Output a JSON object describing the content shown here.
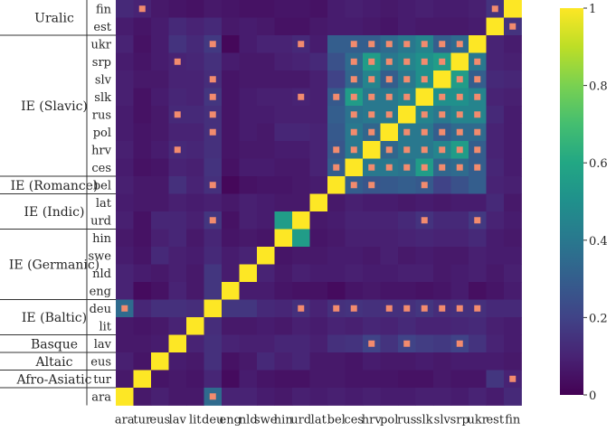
{
  "chart_data": {
    "type": "heatmap",
    "x_labels": [
      "ara",
      "tur",
      "eus",
      "lav",
      "lit",
      "deu",
      "eng",
      "nld",
      "swe",
      "hin",
      "urd",
      "lat",
      "bel",
      "ces",
      "hrv",
      "pol",
      "rus",
      "slk",
      "slv",
      "srp",
      "ukr",
      "est",
      "fin"
    ],
    "y_labels": [
      "fin",
      "est",
      "ukr",
      "srp",
      "slv",
      "slk",
      "rus",
      "pol",
      "hrv",
      "ces",
      "bel",
      "lat",
      "urd",
      "hin",
      "swe",
      "nld",
      "eng",
      "deu",
      "lit",
      "lav",
      "eus",
      "tur",
      "ara"
    ],
    "groups": [
      {
        "name": "Uralic",
        "rows": 2
      },
      {
        "name": "IE (Slavic)",
        "rows": 8
      },
      {
        "name": "IE (Romance)",
        "rows": 1
      },
      {
        "name": "IE (Indic)",
        "rows": 2
      },
      {
        "name": "IE (Germanic)",
        "rows": 4
      },
      {
        "name": "IE (Baltic)",
        "rows": 2
      },
      {
        "name": "Basque",
        "rows": 1
      },
      {
        "name": "Altaic",
        "rows": 1
      },
      {
        "name": "Afro-Asiatic",
        "rows": 1
      }
    ],
    "values": [
      [
        0.12,
        0.1,
        0.07,
        0.06,
        0.05,
        0.07,
        0.06,
        0.05,
        0.05,
        0.06,
        0.06,
        0.05,
        0.08,
        0.09,
        0.08,
        0.07,
        0.08,
        0.09,
        0.08,
        0.08,
        0.09,
        0.15,
        1.0
      ],
      [
        0.08,
        0.06,
        0.08,
        0.12,
        0.1,
        0.12,
        0.07,
        0.08,
        0.07,
        0.05,
        0.05,
        0.07,
        0.08,
        0.08,
        0.07,
        0.06,
        0.08,
        0.07,
        0.07,
        0.07,
        0.08,
        1.0,
        0.15
      ],
      [
        0.1,
        0.05,
        0.08,
        0.15,
        0.12,
        0.17,
        0.02,
        0.08,
        0.1,
        0.1,
        0.12,
        0.08,
        0.3,
        0.3,
        0.3,
        0.35,
        0.4,
        0.45,
        0.3,
        0.35,
        1.0,
        0.1,
        0.08
      ],
      [
        0.08,
        0.06,
        0.08,
        0.1,
        0.11,
        0.14,
        0.08,
        0.07,
        0.07,
        0.09,
        0.1,
        0.12,
        0.25,
        0.35,
        0.55,
        0.4,
        0.45,
        0.5,
        0.55,
        1.0,
        0.4,
        0.1,
        0.09
      ],
      [
        0.09,
        0.07,
        0.07,
        0.1,
        0.1,
        0.13,
        0.06,
        0.07,
        0.07,
        0.07,
        0.07,
        0.09,
        0.2,
        0.33,
        0.45,
        0.3,
        0.4,
        0.5,
        1.0,
        0.55,
        0.3,
        0.12,
        0.11
      ],
      [
        0.09,
        0.05,
        0.08,
        0.11,
        0.1,
        0.16,
        0.06,
        0.08,
        0.09,
        0.09,
        0.1,
        0.09,
        0.28,
        0.55,
        0.4,
        0.4,
        0.45,
        1.0,
        0.5,
        0.5,
        0.45,
        0.1,
        0.09
      ],
      [
        0.08,
        0.05,
        0.07,
        0.12,
        0.12,
        0.14,
        0.06,
        0.08,
        0.08,
        0.09,
        0.09,
        0.09,
        0.3,
        0.38,
        0.4,
        0.4,
        1.0,
        0.45,
        0.4,
        0.45,
        0.45,
        0.12,
        0.08
      ],
      [
        0.08,
        0.06,
        0.07,
        0.1,
        0.1,
        0.14,
        0.06,
        0.08,
        0.07,
        0.11,
        0.11,
        0.1,
        0.28,
        0.4,
        0.33,
        1.0,
        0.4,
        0.4,
        0.3,
        0.35,
        0.35,
        0.1,
        0.08
      ],
      [
        0.09,
        0.06,
        0.08,
        0.12,
        0.11,
        0.14,
        0.06,
        0.07,
        0.07,
        0.08,
        0.08,
        0.1,
        0.27,
        0.4,
        1.0,
        0.33,
        0.4,
        0.4,
        0.45,
        0.55,
        0.3,
        0.1,
        0.08
      ],
      [
        0.08,
        0.05,
        0.06,
        0.1,
        0.09,
        0.15,
        0.05,
        0.08,
        0.08,
        0.07,
        0.07,
        0.1,
        0.3,
        1.0,
        0.4,
        0.4,
        0.38,
        0.55,
        0.33,
        0.35,
        0.3,
        0.11,
        0.08
      ],
      [
        0.09,
        0.07,
        0.07,
        0.14,
        0.1,
        0.14,
        0.02,
        0.05,
        0.06,
        0.06,
        0.07,
        0.08,
        1.0,
        0.3,
        0.27,
        0.28,
        0.3,
        0.28,
        0.2,
        0.25,
        0.3,
        0.1,
        0.09
      ],
      [
        0.08,
        0.07,
        0.07,
        0.09,
        0.08,
        0.09,
        0.07,
        0.09,
        0.08,
        0.07,
        0.07,
        1.0,
        0.07,
        0.09,
        0.08,
        0.08,
        0.07,
        0.08,
        0.07,
        0.08,
        0.08,
        0.12,
        0.07
      ],
      [
        0.09,
        0.05,
        0.11,
        0.11,
        0.09,
        0.16,
        0.05,
        0.09,
        0.08,
        0.55,
        1.0,
        0.07,
        0.08,
        0.1,
        0.1,
        0.1,
        0.12,
        0.15,
        0.12,
        0.12,
        0.17,
        0.1,
        0.08
      ],
      [
        0.07,
        0.05,
        0.09,
        0.11,
        0.07,
        0.11,
        0.06,
        0.07,
        0.06,
        1.0,
        0.55,
        0.06,
        0.07,
        0.09,
        0.09,
        0.09,
        0.1,
        0.11,
        0.1,
        0.1,
        0.12,
        0.08,
        0.07
      ],
      [
        0.08,
        0.06,
        0.12,
        0.09,
        0.08,
        0.12,
        0.08,
        0.1,
        1.0,
        0.06,
        0.07,
        0.07,
        0.08,
        0.08,
        0.07,
        0.09,
        0.07,
        0.08,
        0.07,
        0.07,
        0.09,
        0.08,
        0.08
      ],
      [
        0.1,
        0.08,
        0.07,
        0.09,
        0.07,
        0.16,
        0.08,
        1.0,
        0.1,
        0.07,
        0.09,
        0.08,
        0.08,
        0.09,
        0.08,
        0.08,
        0.09,
        0.09,
        0.07,
        0.08,
        0.09,
        0.07,
        0.09
      ],
      [
        0.1,
        0.03,
        0.05,
        0.1,
        0.07,
        0.16,
        1.0,
        0.08,
        0.08,
        0.06,
        0.05,
        0.05,
        0.03,
        0.06,
        0.07,
        0.06,
        0.06,
        0.05,
        0.06,
        0.08,
        0.04,
        0.06,
        0.08
      ],
      [
        0.35,
        0.11,
        0.14,
        0.14,
        0.13,
        1.0,
        0.16,
        0.16,
        0.12,
        0.11,
        0.14,
        0.1,
        0.14,
        0.15,
        0.14,
        0.14,
        0.14,
        0.16,
        0.13,
        0.14,
        0.14,
        0.12,
        0.12
      ],
      [
        0.07,
        0.06,
        0.07,
        0.1,
        1.0,
        0.13,
        0.07,
        0.07,
        0.08,
        0.07,
        0.09,
        0.08,
        0.1,
        0.09,
        0.11,
        0.1,
        0.12,
        0.1,
        0.1,
        0.11,
        0.12,
        0.09,
        0.08
      ],
      [
        0.07,
        0.07,
        0.08,
        1.0,
        0.1,
        0.14,
        0.1,
        0.09,
        0.09,
        0.11,
        0.11,
        0.09,
        0.14,
        0.15,
        0.2,
        0.15,
        0.2,
        0.18,
        0.17,
        0.2,
        0.15,
        0.1,
        0.08
      ],
      [
        0.09,
        0.06,
        1.0,
        0.08,
        0.07,
        0.14,
        0.05,
        0.07,
        0.12,
        0.09,
        0.11,
        0.07,
        0.07,
        0.06,
        0.08,
        0.07,
        0.07,
        0.08,
        0.07,
        0.08,
        0.08,
        0.08,
        0.07
      ],
      [
        0.07,
        1.0,
        0.06,
        0.07,
        0.06,
        0.11,
        0.03,
        0.08,
        0.06,
        0.05,
        0.05,
        0.07,
        0.07,
        0.06,
        0.06,
        0.06,
        0.05,
        0.05,
        0.07,
        0.06,
        0.06,
        0.16,
        0.1
      ],
      [
        1.0,
        0.07,
        0.09,
        0.07,
        0.07,
        0.35,
        0.1,
        0.1,
        0.08,
        0.07,
        0.09,
        0.08,
        0.09,
        0.08,
        0.09,
        0.08,
        0.08,
        0.09,
        0.09,
        0.08,
        0.1,
        0.08,
        0.12
      ]
    ],
    "markers": {
      "fin": [
        "tur",
        "est"
      ],
      "est": [
        "fin"
      ],
      "ukr": [
        "deu",
        "urd",
        "ces",
        "hrv",
        "pol",
        "rus",
        "slk",
        "slv",
        "srp"
      ],
      "srp": [
        "lav",
        "ces",
        "hrv",
        "pol",
        "rus",
        "slk",
        "slv",
        "ukr"
      ],
      "slv": [
        "deu",
        "ces",
        "hrv",
        "pol",
        "rus",
        "slk",
        "srp",
        "ukr"
      ],
      "slk": [
        "deu",
        "urd",
        "bel",
        "ces",
        "hrv",
        "pol",
        "rus",
        "slv",
        "srp",
        "ukr"
      ],
      "rus": [
        "lav",
        "deu",
        "ces",
        "hrv",
        "pol",
        "slk",
        "slv",
        "srp",
        "ukr"
      ],
      "pol": [
        "deu",
        "ces",
        "hrv",
        "rus",
        "slk",
        "slv",
        "srp",
        "ukr"
      ],
      "hrv": [
        "lav",
        "bel",
        "ces",
        "pol",
        "rus",
        "slk",
        "slv",
        "srp",
        "ukr"
      ],
      "ces": [
        "bel",
        "hrv",
        "pol",
        "rus",
        "slk",
        "slv",
        "srp",
        "ukr"
      ],
      "bel": [
        "deu",
        "ces",
        "hrv",
        "slk"
      ],
      "urd": [
        "deu",
        "slk",
        "ukr"
      ],
      "deu": [
        "ara",
        "urd",
        "bel",
        "ces",
        "pol",
        "rus",
        "slk",
        "slv",
        "srp",
        "ukr"
      ],
      "lav": [
        "hrv",
        "rus",
        "srp"
      ],
      "tur": [
        "fin"
      ],
      "ara": [
        "deu"
      ]
    },
    "colorbar": {
      "min": 0,
      "max": 1,
      "ticks": [
        "0",
        "0.2",
        "0.4",
        "0.6",
        "0.8",
        "1"
      ]
    },
    "colormap": "viridis",
    "marker_color": "#f28b6e"
  }
}
